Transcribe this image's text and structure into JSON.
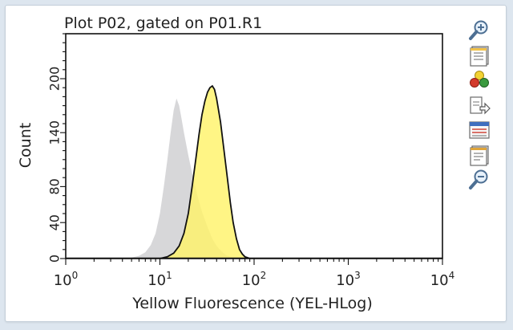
{
  "plot": {
    "title": "Plot P02, gated on P01.R1"
  },
  "toolbar": {
    "icons": [
      "zoom-in-icon",
      "properties-icon",
      "color-palette-icon",
      "export-icon",
      "statistics-icon",
      "notes-icon",
      "zoom-out-icon"
    ]
  },
  "colors": {
    "background": "#dde6ef",
    "panel": "#ffffff",
    "grey_fill": "#d7d7d9",
    "yellow_fill": "#fff36a",
    "overlap_fill": "#d9d09a",
    "outline": "#111111"
  },
  "chart_data": {
    "type": "area",
    "title": "Plot P02, gated on P01.R1",
    "xlabel": "Yellow Fluorescence (YEL-HLog)",
    "ylabel": "Count",
    "x_scale": "log",
    "xlim": [
      1,
      10000
    ],
    "ylim": [
      0,
      250
    ],
    "x_ticks": [
      {
        "base": "10",
        "exp": "0",
        "value": 1
      },
      {
        "base": "10",
        "exp": "1",
        "value": 10
      },
      {
        "base": "10",
        "exp": "2",
        "value": 100
      },
      {
        "base": "10",
        "exp": "3",
        "value": 1000
      },
      {
        "base": "10",
        "exp": "4",
        "value": 10000
      }
    ],
    "y_ticks": [
      {
        "label": "0",
        "value": 0
      },
      {
        "label": "40",
        "value": 40
      },
      {
        "label": "80",
        "value": 80
      },
      {
        "label": "140",
        "value": 140
      },
      {
        "label": "200",
        "value": 200
      }
    ],
    "grid": false,
    "series": [
      {
        "style": "grey-filled",
        "x": [
          4,
          5,
          6,
          7,
          8,
          9,
          10,
          11,
          12,
          13,
          14,
          15,
          16,
          17,
          18,
          20,
          22,
          25,
          28,
          32,
          36,
          40,
          45,
          50,
          56,
          63,
          70,
          80
        ],
        "y": [
          0,
          1,
          3,
          7,
          15,
          28,
          50,
          80,
          110,
          140,
          165,
          178,
          170,
          155,
          140,
          115,
          95,
          70,
          52,
          35,
          22,
          14,
          8,
          4,
          2,
          1,
          0.5,
          0
        ]
      },
      {
        "style": "yellow-outlined",
        "x": [
          10,
          12,
          14,
          16,
          18,
          20,
          22,
          24,
          26,
          28,
          30,
          32,
          34,
          36,
          38,
          40,
          44,
          48,
          52,
          56,
          60,
          65,
          70,
          75,
          80,
          85,
          90
        ],
        "y": [
          0,
          2,
          6,
          14,
          28,
          50,
          80,
          110,
          138,
          160,
          175,
          185,
          190,
          192,
          188,
          178,
          152,
          120,
          90,
          62,
          40,
          22,
          10,
          5,
          2,
          1,
          0
        ]
      }
    ]
  }
}
